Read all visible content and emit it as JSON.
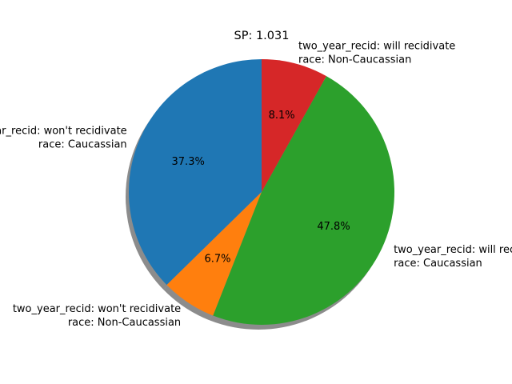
{
  "chart_data": {
    "type": "pie",
    "title": "SP: 1.031",
    "start_angle_deg": 90,
    "counterclock": true,
    "shadow": true,
    "slices": [
      {
        "label_line1": "two_year_recid: won't recidivate",
        "label_line2": "race: Caucassian",
        "value": 37.3,
        "pct_text": "37.3%",
        "color": "#1f77b4"
      },
      {
        "label_line1": "two_year_recid: won't recidivate",
        "label_line2": "race: Non-Caucassian",
        "value": 6.7,
        "pct_text": "6.7%",
        "color": "#ff7f0e"
      },
      {
        "label_line1": "two_year_recid: will recidivate",
        "label_line2": "race: Caucassian",
        "value": 47.8,
        "pct_text": "47.8%",
        "color": "#2ca02c"
      },
      {
        "label_line1": "two_year_recid: will recidivate",
        "label_line2": "race: Non-Caucassian",
        "value": 8.1,
        "pct_text": "8.1%",
        "color": "#d62728"
      }
    ]
  }
}
